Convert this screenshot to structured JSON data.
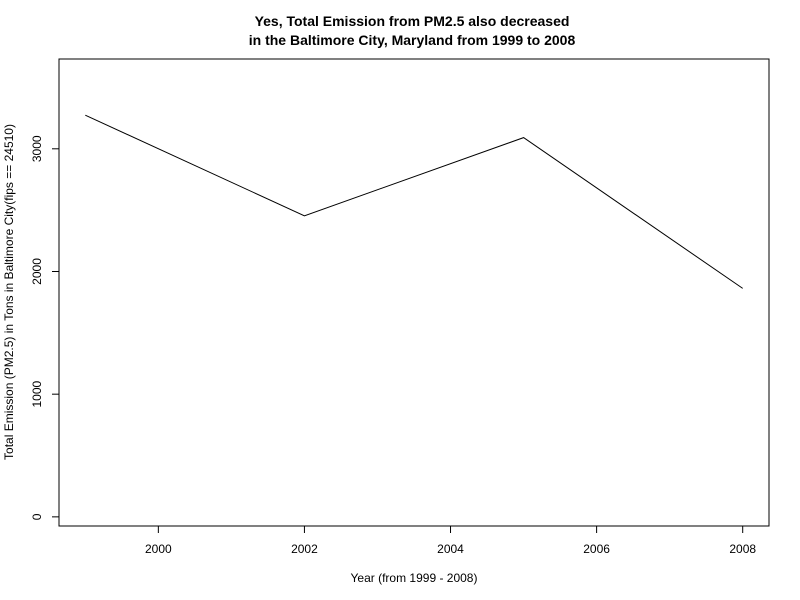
{
  "chart_data": {
    "type": "line",
    "title_lines": [
      "Yes, Total Emission from PM2.5 also decreased",
      "in the Baltimore City, Maryland from 1999 to 2008"
    ],
    "xlabel": "Year (from 1999 - 2008)",
    "ylabel": "Total Emission (PM2.5) in Tons in Baltimore City(fips == 24510)",
    "x": [
      1999,
      2002,
      2005,
      2008
    ],
    "y": [
      3274.2,
      2453.9,
      3091.4,
      1862.3
    ],
    "xlim": [
      1998.64,
      2008.36
    ],
    "ylim": [
      -74.5,
      3732.0
    ],
    "xticks": [
      2000,
      2002,
      2004,
      2006,
      2008
    ],
    "yticks": [
      0,
      1000,
      2000,
      3000
    ],
    "grid": false,
    "line_color": "#000000"
  }
}
